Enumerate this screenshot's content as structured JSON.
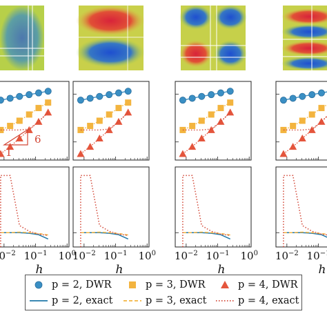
{
  "colors": {
    "dwr_p2": "#3a8fc4",
    "dwr_p3": "#f3b43f",
    "dwr_p4": "#e4553c",
    "exact_p2": "#1f77a8",
    "exact_p3": "#f3b43f",
    "exact_p4": "#d24535",
    "annotation": "#d24535"
  },
  "annotation": {
    "slope_label": "6",
    "run_label": "1"
  },
  "legend": {
    "items": [
      {
        "label": "p = 2, DWR",
        "marker": "circle",
        "color": "#3a8fc4"
      },
      {
        "label": "p = 3, DWR",
        "marker": "square",
        "color": "#f3b43f"
      },
      {
        "label": "p = 4, DWR",
        "marker": "triangle",
        "color": "#e4553c"
      },
      {
        "label": "p = 2, exact",
        "line": "solid",
        "color": "#1f77a8"
      },
      {
        "label": "p = 3, exact",
        "line": "dashed",
        "color": "#f3b43f"
      },
      {
        "label": "p = 4, exact",
        "line": "dotted",
        "color": "#d24535"
      }
    ]
  },
  "chart_data": [
    {
      "type": "line",
      "panel": "convergence",
      "xscale": "log",
      "yscale": "log",
      "note": "numeric y tick labels are not visible in the image",
      "series": [
        {
          "name": "p = 2, DWR",
          "marker": "circle",
          "x": [
            0.0078,
            0.0156,
            0.031,
            0.0625,
            0.125,
            0.25
          ],
          "y": [
            0.0032,
            0.0046,
            0.0066,
            0.0093,
            0.013,
            0.018
          ]
        },
        {
          "name": "p = 3, DWR",
          "marker": "square",
          "x": [
            0.0078,
            0.0156,
            0.031,
            0.0625,
            0.125,
            0.25
          ],
          "y": [
            1e-05,
            2.2e-05,
            6e-05,
            0.0002,
            0.0007,
            0.002
          ]
        },
        {
          "name": "p = 4, DWR",
          "marker": "triangle",
          "x": [
            0.0078,
            0.0156,
            0.031,
            0.0625,
            0.125,
            0.25
          ],
          "y": [
            1e-07,
            4e-07,
            2e-06,
            1e-05,
            5e-05,
            0.0003
          ]
        },
        {
          "name": "p = 4, exact",
          "line": "dotted",
          "x": [
            0.0078,
            0.0156,
            0.031,
            0.0625,
            0.125,
            0.25
          ],
          "y": [
            1e-05,
            1e-05,
            1e-05,
            1.2e-05,
            5e-05,
            0.0003
          ]
        }
      ]
    },
    {
      "type": "line",
      "panel": "effectivity",
      "xscale": "log",
      "xlabel": "h",
      "xticks": [
        {
          "label": "10",
          "exp": "−2",
          "value": 0.01
        },
        {
          "label": "10",
          "exp": "−1",
          "value": 0.1
        },
        {
          "label": "10",
          "exp": "0",
          "value": 1
        }
      ],
      "note": "numeric y tick labels are not visible in the image",
      "series": [
        {
          "name": "p = 2, exact",
          "line": "solid",
          "x": [
            0.0078,
            0.0156,
            0.031,
            0.0625,
            0.125,
            0.25
          ],
          "y": [
            1.0,
            1.0,
            1.0,
            0.98,
            0.93,
            0.78
          ]
        },
        {
          "name": "p = 3, exact",
          "line": "dashed",
          "x": [
            0.0078,
            0.0156,
            0.031,
            0.0625,
            0.125,
            0.25
          ],
          "y": [
            1.0,
            1.0,
            1.02,
            1.0,
            0.97,
            0.92
          ]
        },
        {
          "name": "p = 4, exact",
          "line": "dotted",
          "x": [
            0.0078,
            0.0156,
            0.031,
            0.0625,
            0.125,
            0.25
          ],
          "y": [
            3.0,
            3.0,
            1.25,
            1.05,
            0.95,
            0.9
          ]
        }
      ]
    }
  ]
}
